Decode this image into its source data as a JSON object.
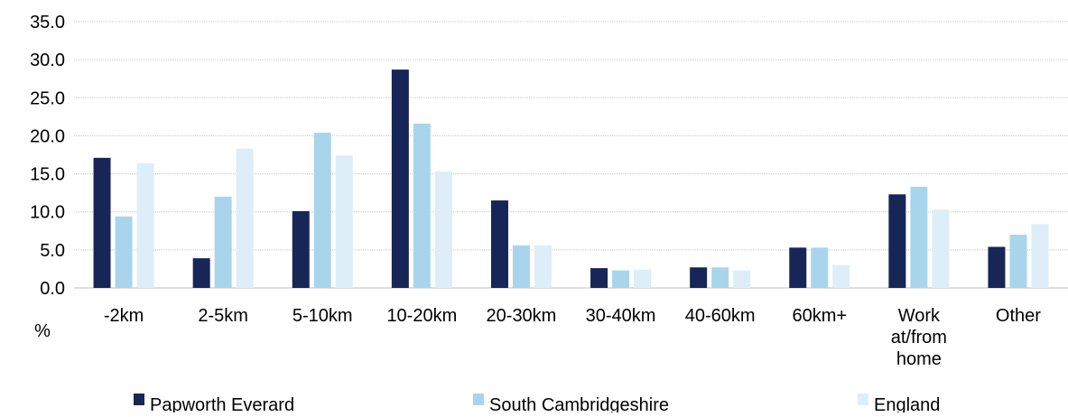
{
  "chart_data": {
    "type": "bar",
    "ylabel": "%",
    "ylim": [
      0,
      35
    ],
    "yticks": [
      "0.0",
      "5.0",
      "10.0",
      "15.0",
      "20.0",
      "25.0",
      "30.0",
      "35.0"
    ],
    "grid": "horizontal",
    "legend_position": "bottom",
    "categories": [
      [
        "-2km"
      ],
      [
        "2-5km"
      ],
      [
        "5-10km"
      ],
      [
        "10-20km"
      ],
      [
        "20-30km"
      ],
      [
        "30-40km"
      ],
      [
        "40-60km"
      ],
      [
        "60km+"
      ],
      [
        "Work",
        "at/from",
        "home"
      ],
      [
        "Other"
      ]
    ],
    "series": [
      {
        "name": "Papworth Everard",
        "color": "#172656",
        "values": [
          17.1,
          3.9,
          10.1,
          28.7,
          11.5,
          2.6,
          2.7,
          5.3,
          12.3,
          5.4
        ]
      },
      {
        "name": "South Cambridgeshire",
        "color": "#a9d5ec",
        "values": [
          9.4,
          12.0,
          20.4,
          21.6,
          5.6,
          2.3,
          2.7,
          5.3,
          13.3,
          7.0
        ]
      },
      {
        "name": "England",
        "color": "#ddeef8",
        "values": [
          16.4,
          18.3,
          17.4,
          15.3,
          5.6,
          2.4,
          2.3,
          3.0,
          10.3,
          8.4
        ]
      }
    ]
  }
}
